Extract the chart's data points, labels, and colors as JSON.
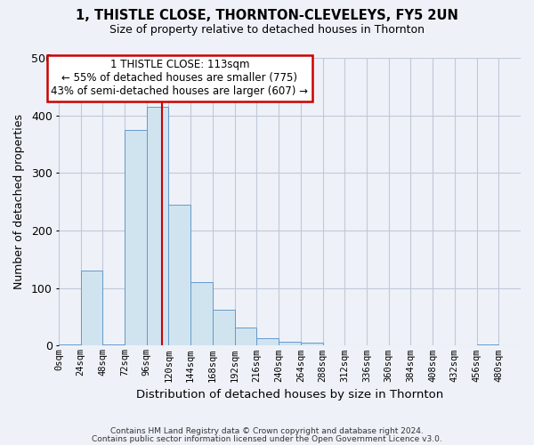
{
  "title": "1, THISTLE CLOSE, THORNTON-CLEVELEYS, FY5 2UN",
  "subtitle": "Size of property relative to detached houses in Thornton",
  "xlabel": "Distribution of detached houses by size in Thornton",
  "ylabel": "Number of detached properties",
  "bar_color": "#d0e4f0",
  "bar_edge_color": "#6699cc",
  "bins_left": [
    0,
    24,
    48,
    72,
    96,
    120,
    144,
    168,
    192,
    216,
    240,
    264,
    288,
    312,
    336,
    360,
    384,
    408,
    432,
    456
  ],
  "bin_width": 24,
  "bar_heights": [
    2,
    130,
    2,
    375,
    415,
    245,
    110,
    63,
    32,
    13,
    7,
    5,
    0,
    0,
    0,
    0,
    0,
    0,
    0,
    2
  ],
  "xticklabels": [
    "0sqm",
    "24sqm",
    "48sqm",
    "72sqm",
    "96sqm",
    "120sqm",
    "144sqm",
    "168sqm",
    "192sqm",
    "216sqm",
    "240sqm",
    "264sqm",
    "288sqm",
    "312sqm",
    "336sqm",
    "360sqm",
    "384sqm",
    "408sqm",
    "432sqm",
    "456sqm",
    "480sqm"
  ],
  "xtick_positions": [
    0,
    24,
    48,
    72,
    96,
    120,
    144,
    168,
    192,
    216,
    240,
    264,
    288,
    312,
    336,
    360,
    384,
    408,
    432,
    456,
    480
  ],
  "ylim": [
    0,
    500
  ],
  "xlim": [
    0,
    504
  ],
  "property_line_x": 113,
  "property_line_color": "#cc0000",
  "annotation_line1": "1 THISTLE CLOSE: 113sqm",
  "annotation_line2": "← 55% of detached houses are smaller (775)",
  "annotation_line3": "43% of semi-detached houses are larger (607) →",
  "annotation_box_edge_color": "#cc0000",
  "footer_line1": "Contains HM Land Registry data © Crown copyright and database right 2024.",
  "footer_line2": "Contains public sector information licensed under the Open Government Licence v3.0.",
  "bg_color": "#eef2f8",
  "grid_color": "#c0c8d8"
}
